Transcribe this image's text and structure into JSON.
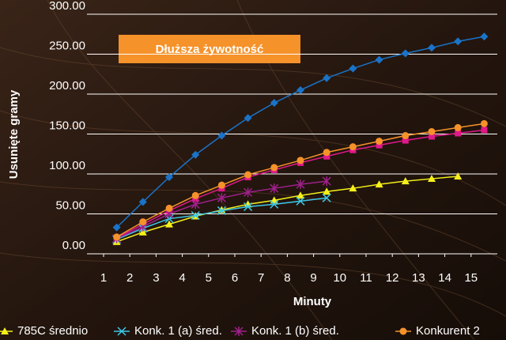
{
  "chart_data": {
    "type": "line",
    "annotation": "Dłuższa żywotność",
    "xlabel": "Minuty",
    "ylabel": "Usunięte gramy",
    "xlim": [
      1,
      16
    ],
    "xticks": [
      1,
      2,
      3,
      4,
      5,
      6,
      7,
      8,
      9,
      10,
      11,
      12,
      13,
      14,
      15
    ],
    "ylim": [
      0,
      300
    ],
    "yticks": [
      {
        "value": 0,
        "label": "0.00"
      },
      {
        "value": 50,
        "label": "50.00"
      },
      {
        "value": 100,
        "label": "100.00"
      },
      {
        "value": 150,
        "label": "150.00"
      },
      {
        "value": 200,
        "label": "200.00"
      },
      {
        "value": 250,
        "label": "250.00"
      },
      {
        "value": 300,
        "label": "300.00"
      }
    ],
    "grid": true,
    "series": [
      {
        "color": "#1a73c8",
        "marker": "diamond",
        "x": [
          1.5,
          2.5,
          3.5,
          4.5,
          5.5,
          6.5,
          7.5,
          8.5,
          9.5,
          10.5,
          11.5,
          12.5,
          13.5,
          14.5,
          15.5
        ],
        "values": [
          33,
          65,
          96,
          124,
          148,
          170,
          189,
          205,
          220,
          232,
          243,
          251,
          258,
          266,
          272
        ]
      },
      {
        "color": "#e0198a",
        "marker": "square",
        "x": [
          1.5,
          2.5,
          3.5,
          4.5,
          5.5,
          6.5,
          7.5,
          8.5,
          9.5,
          10.5,
          11.5,
          12.5,
          13.5,
          14.5,
          15.5
        ],
        "values": [
          20,
          37,
          54,
          69,
          82,
          96,
          105,
          114,
          122,
          130,
          136,
          142,
          147,
          151,
          155
        ]
      },
      {
        "name": "785C średnio",
        "color": "#f5f01a",
        "marker": "triangle",
        "x": [
          1.5,
          2.5,
          3.5,
          4.5,
          5.5,
          6.5,
          7.5,
          8.5,
          9.5,
          10.5,
          11.5,
          12.5,
          13.5,
          14.5
        ],
        "values": [
          15,
          27,
          37,
          47,
          55,
          62,
          67,
          73,
          78,
          82,
          87,
          91,
          94,
          97
        ]
      },
      {
        "name": "Konk. 1 (a) śred.",
        "color": "#3cc8e8",
        "marker": "x",
        "x": [
          1.5,
          2.5,
          3.5,
          4.5,
          5.5,
          6.5,
          7.5,
          8.5,
          9.5
        ],
        "values": [
          18,
          32,
          44,
          48,
          54,
          59,
          62,
          66,
          70
        ]
      },
      {
        "name": "Konk. 1 (b) śred.",
        "color": "#a0208c",
        "marker": "star",
        "x": [
          1.5,
          2.5,
          3.5,
          4.5,
          5.5,
          6.5,
          7.5,
          8.5,
          9.5
        ],
        "values": [
          19,
          34,
          50,
          62,
          70,
          77,
          82,
          87,
          91
        ]
      },
      {
        "name": "Konkurent 2",
        "color": "#f5922a",
        "marker": "circle",
        "x": [
          1.5,
          2.5,
          3.5,
          4.5,
          5.5,
          6.5,
          7.5,
          8.5,
          9.5,
          10.5,
          11.5,
          12.5,
          13.5,
          14.5,
          15.5
        ],
        "values": [
          21,
          40,
          57,
          73,
          86,
          99,
          108,
          117,
          127,
          134,
          141,
          148,
          153,
          158,
          163
        ]
      }
    ]
  }
}
